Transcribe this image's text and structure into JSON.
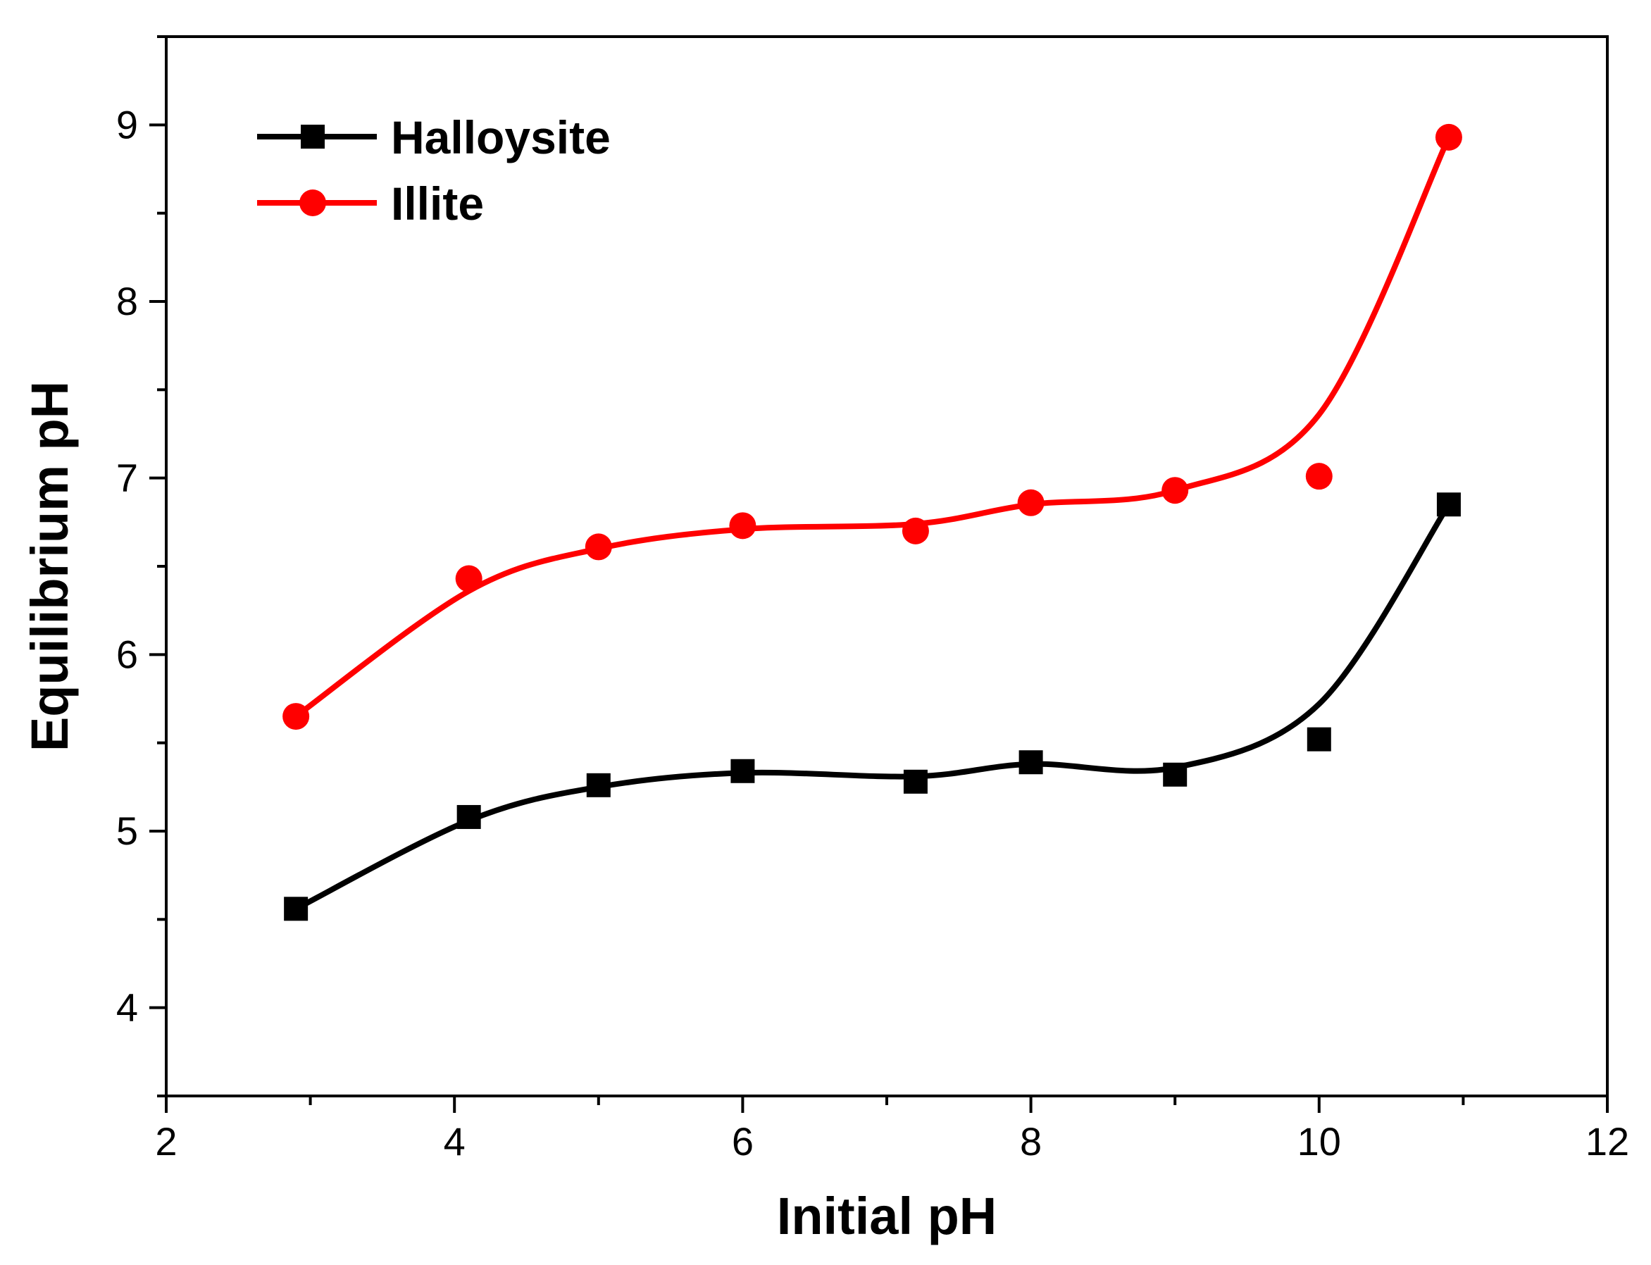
{
  "chart_data": {
    "type": "line",
    "title": "",
    "xlabel": "Initial pH",
    "ylabel": "Equilibrium pH",
    "xlim": [
      2,
      12
    ],
    "ylim": [
      3.5,
      9.5
    ],
    "xticks": [
      2,
      4,
      6,
      8,
      10,
      12
    ],
    "xtick_labels": [
      "2",
      "4",
      "6",
      "8",
      "10",
      "12"
    ],
    "yticks": [
      4,
      5,
      6,
      7,
      8,
      9
    ],
    "ytick_labels": [
      "4",
      "5",
      "6",
      "7",
      "8",
      "9"
    ],
    "grid": false,
    "legend_position": "top-left",
    "series": [
      {
        "name": "Halloysite",
        "color": "#000000",
        "marker": "square",
        "x": [
          2.9,
          4.1,
          5.0,
          6.0,
          7.2,
          8.0,
          9.0,
          10.0,
          10.9
        ],
        "y": [
          4.56,
          5.08,
          5.26,
          5.34,
          5.28,
          5.39,
          5.32,
          5.52,
          6.85
        ],
        "fit_curve_y": [
          4.56,
          5.06,
          5.25,
          5.33,
          5.31,
          5.38,
          5.36,
          5.72,
          6.85
        ]
      },
      {
        "name": "Illite",
        "color": "#ff0000",
        "marker": "circle",
        "x": [
          2.9,
          4.1,
          5.0,
          6.0,
          7.2,
          8.0,
          9.0,
          10.0,
          10.9
        ],
        "y": [
          5.65,
          6.43,
          6.61,
          6.73,
          6.7,
          6.86,
          6.93,
          7.01,
          8.93
        ],
        "fit_curve_y": [
          5.65,
          6.36,
          6.6,
          6.71,
          6.74,
          6.85,
          6.93,
          7.36,
          8.93
        ]
      }
    ]
  }
}
